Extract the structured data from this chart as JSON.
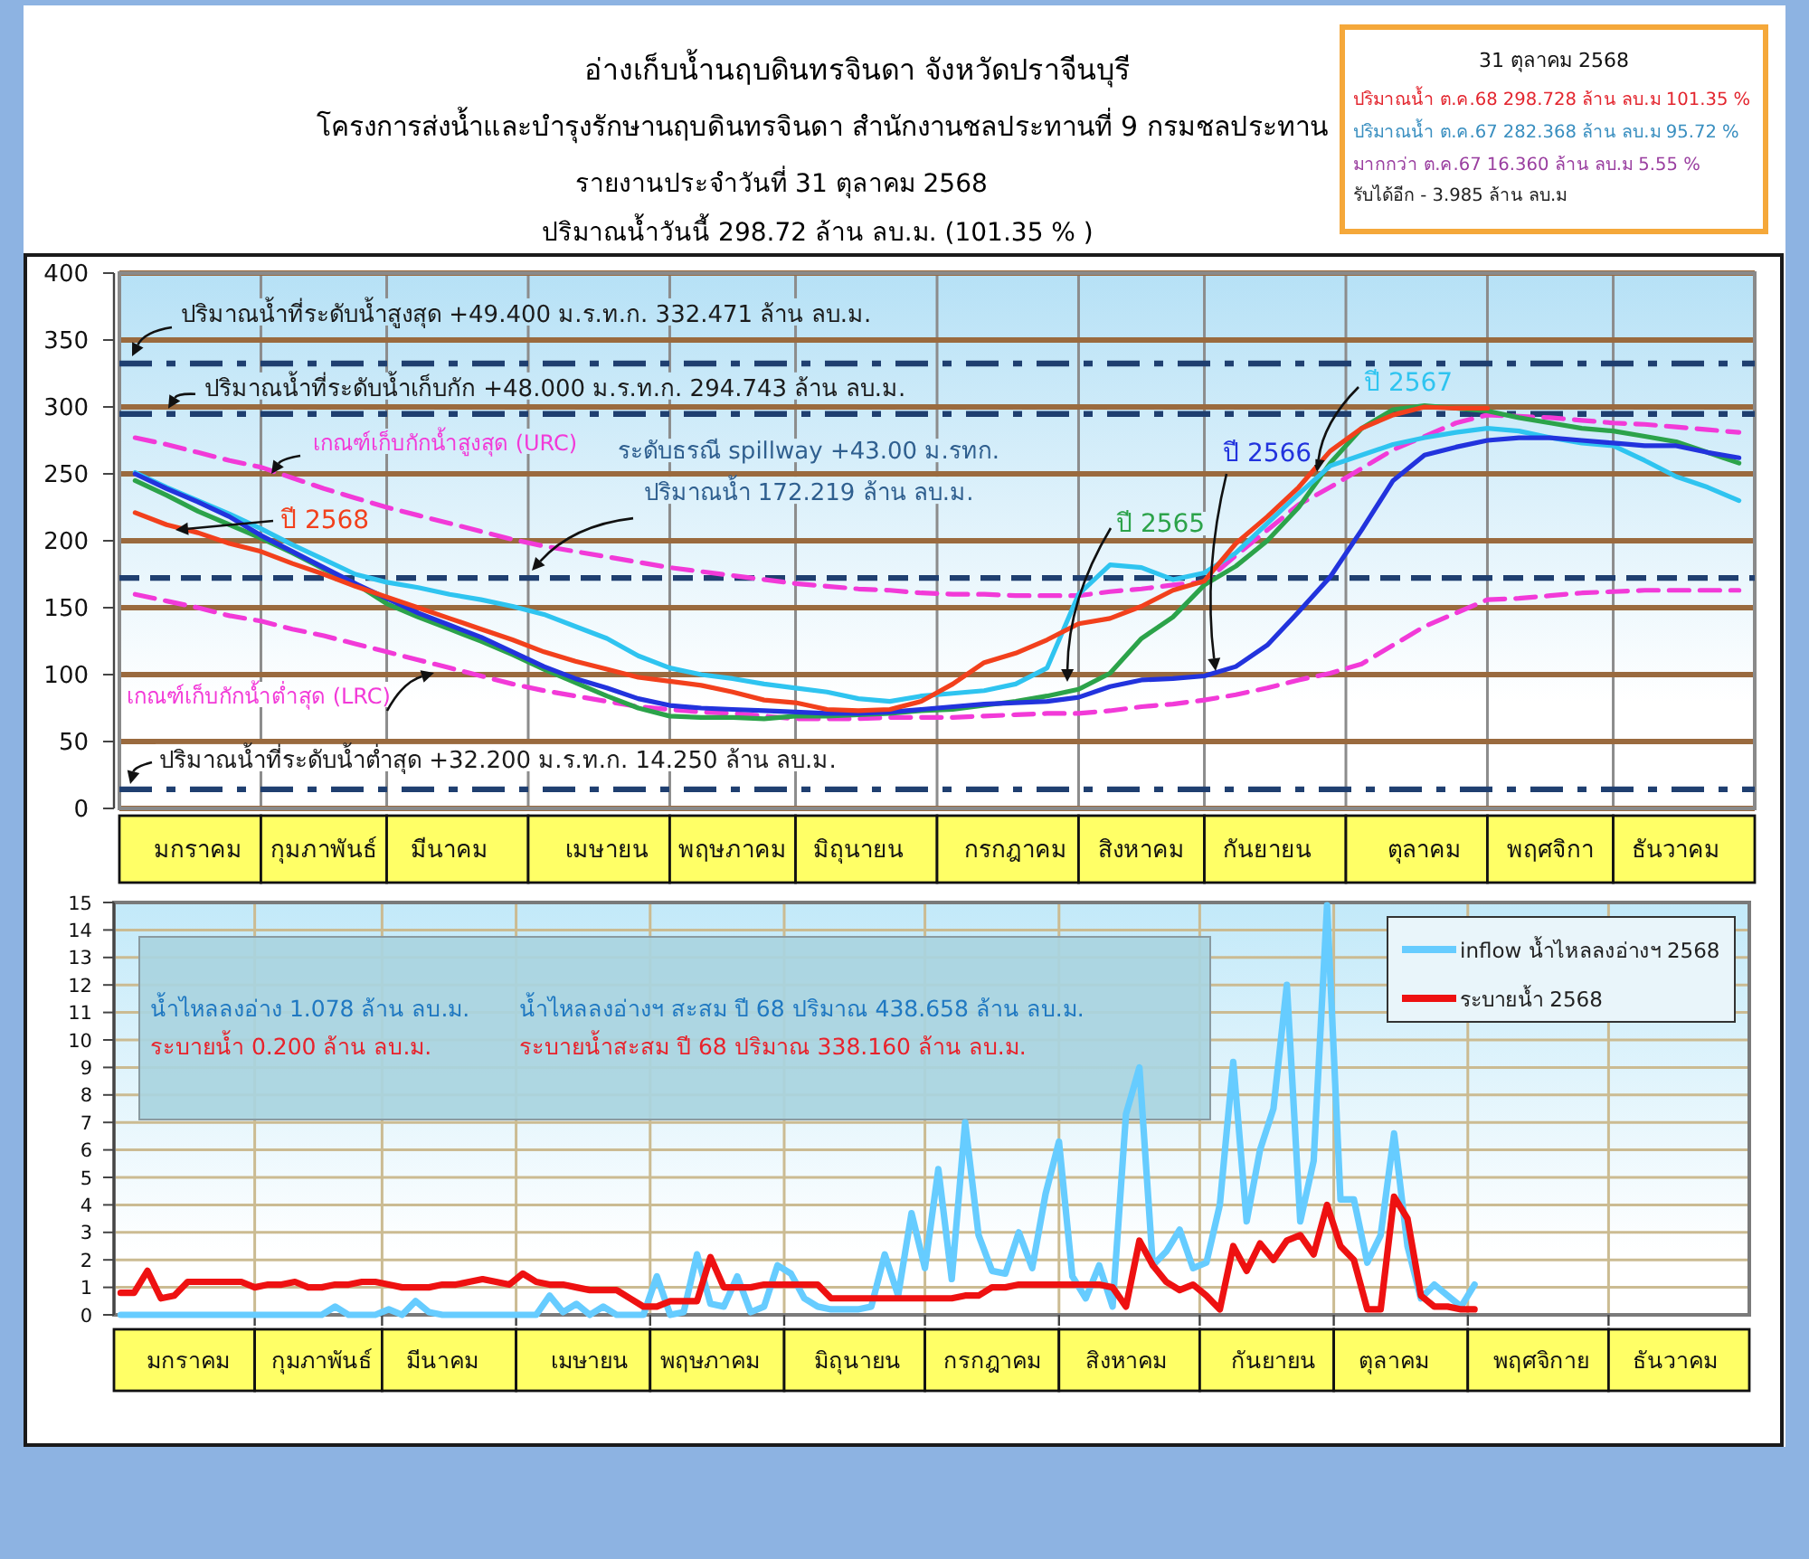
{
  "chart_data": [
    {
      "type": "line",
      "title": "อ่างเก็บน้ำนฤบดินทรจินดา จังหวัดปราจีนบุรี",
      "subtitle": "โครงการส่งน้ำและบำรุงรักษานฤบดินทรจินดา สำนักงานชลประทานที่ 9 กรมชลประทาน",
      "annotations": [
        "รายงานประจำวันที่ 31 ตุลาคม 2568",
        "ปริมาณน้ำวันนี้ 298.72 ล้าน ลบ.ม. (101.35 % )"
      ],
      "categories": [
        null,
        null,
        "มกราคม",
        null,
        null,
        null,
        "กุมภาพันธ์",
        null,
        null,
        null,
        "มีนาคม",
        null,
        null,
        null,
        null,
        "เมษายน",
        null,
        null,
        null,
        "พฤษภาคม",
        null,
        null,
        null,
        "มิถุนายน",
        null,
        null,
        null,
        null,
        "กรกฎาคม",
        null,
        null,
        null,
        "สิงหาคม",
        null,
        null,
        null,
        "กันยายน",
        null,
        null,
        null,
        null,
        "ตุลาคม",
        null,
        null,
        null,
        "พฤศจิกา",
        null,
        null,
        null,
        "ธันวาคม",
        null,
        null
      ],
      "ylim": [
        0,
        400
      ],
      "yticks": [
        0,
        50,
        100,
        150,
        200,
        250,
        300,
        350,
        400
      ],
      "grid": true,
      "series": [
        {
          "name": "เกณฑ์เก็บกักน้ำสูงสุด (URC)",
          "color": "#f23ad8",
          "line_style": "dashed",
          "values": [
            277,
            272,
            266,
            260,
            255,
            247,
            239,
            232,
            225,
            219,
            213,
            207,
            201,
            196,
            192,
            188,
            184,
            180,
            177,
            174,
            171,
            168,
            166,
            164,
            163,
            161,
            160,
            160,
            159,
            159,
            159,
            162,
            164,
            167,
            169,
            189,
            208,
            227,
            240,
            254,
            268,
            278,
            288,
            294,
            293,
            292,
            290,
            288,
            287,
            285,
            283,
            281
          ]
        },
        {
          "name": "เกณฑ์เก็บกักน้ำต่ำสุด (LRC)",
          "color": "#f23ad8",
          "line_style": "dashed",
          "values": [
            160,
            155,
            150,
            144,
            140,
            134,
            129,
            123,
            117,
            111,
            105,
            99,
            93,
            88,
            84,
            80,
            76,
            74,
            72,
            71,
            69,
            67,
            67,
            67,
            68,
            68,
            68,
            69,
            70,
            71,
            71,
            73,
            76,
            78,
            81,
            85,
            90,
            96,
            101,
            108,
            122,
            136,
            146,
            156,
            157,
            159,
            161,
            162,
            163,
            163,
            163,
            163
          ]
        },
        {
          "name": "ปี 2565",
          "color": "#2ca34a",
          "values": [
            245,
            234,
            222,
            212,
            202,
            191,
            179,
            168,
            153,
            143,
            134,
            125,
            115,
            104,
            94,
            84,
            75,
            69,
            68,
            68,
            67,
            69,
            69,
            70,
            71,
            73,
            74,
            77,
            80,
            84,
            89,
            101,
            127,
            143,
            167,
            181,
            200,
            225,
            258,
            284,
            298,
            301,
            299,
            297,
            292,
            288,
            284,
            282,
            278,
            274,
            266,
            258
          ]
        },
        {
          "name": "ปี 2567",
          "color": "#2fc4f0",
          "values": [
            251,
            240,
            230,
            220,
            209,
            197,
            186,
            175,
            169,
            165,
            160,
            156,
            151,
            145,
            136,
            127,
            114,
            105,
            100,
            97,
            93,
            90,
            87,
            82,
            80,
            84,
            86,
            88,
            93,
            105,
            160,
            182,
            180,
            171,
            176,
            191,
            213,
            235,
            256,
            264,
            272,
            277,
            281,
            284,
            282,
            277,
            273,
            271,
            260,
            248,
            240,
            230
          ]
        },
        {
          "name": "ปี 2566",
          "color": "#2233dd",
          "values": [
            250,
            239,
            229,
            218,
            204,
            192,
            180,
            168,
            157,
            146,
            137,
            128,
            117,
            106,
            97,
            90,
            82,
            77,
            75,
            74,
            73,
            72,
            71,
            71,
            72,
            74,
            76,
            78,
            79,
            80,
            83,
            91,
            96,
            97,
            99,
            106,
            122,
            147,
            173,
            208,
            245,
            264,
            270,
            275,
            277,
            277,
            275,
            273,
            271,
            271,
            266,
            262
          ]
        },
        {
          "name": "ปี 2568",
          "color": "#f2401c",
          "values": [
            221,
            212,
            206,
            198,
            192,
            183,
            175,
            166,
            158,
            150,
            142,
            134,
            126,
            117,
            110,
            104,
            98,
            95,
            92,
            87,
            81,
            79,
            74,
            73,
            74,
            80,
            93,
            109,
            116,
            126,
            138,
            142,
            151,
            163,
            170,
            198,
            218,
            240,
            267,
            284,
            294,
            300,
            299,
            299,
            null,
            null,
            null,
            null,
            null,
            null,
            null,
            null
          ]
        }
      ],
      "ref_lines": [
        {
          "axis": "y",
          "value": 332.471,
          "label": "ปริมาณน้ำที่ระดับน้ำสูงสุด +49.400 ม.ร.ท.ก. 332.471 ล้าน ลบ.ม.",
          "color": "#1f3f70",
          "line_style": "dashdot"
        },
        {
          "axis": "y",
          "value": 294.743,
          "label": "ปริมาณน้ำที่ระดับน้ำเก็บกัก +48.000 ม.ร.ท.ก. 294.743 ล้าน ลบ.ม.",
          "color": "#1f3f70",
          "line_style": "dashdot"
        },
        {
          "axis": "y",
          "value": 172.219,
          "label": "ระดับธรณี spillway +43.00 ม.รทก.\nปริมาณน้ำ 172.219 ล้าน ลบ.ม.",
          "color": "#1f3f70",
          "line_style": "dashed"
        },
        {
          "axis": "y",
          "value": 14.25,
          "label": "ปริมาณน้ำที่ระดับน้ำต่ำสุด +32.200 ม.ร.ท.ก. 14.250 ล้าน ลบ.ม.",
          "color": "#1f3f70",
          "line_style": "dashdot"
        }
      ]
    },
    {
      "type": "other",
      "title": "31 ตุลาคม 2568",
      "annotations": [
        "ปริมาณน้ำ ต.ค.68 298.728 ล้าน ลบ.ม 101.35 %",
        "ปริมาณน้ำ ต.ค.67 282.368 ล้าน ลบ.ม 95.72 %",
        "มากกว่า ต.ค.67 16.360 ล้าน ลบ.ม 5.55 %",
        "รับได้อีก - 3.985 ล้าน ลบ.ม"
      ]
    },
    {
      "type": "line",
      "categories": [
        null,
        null,
        null,
        null,
        null,
        "มกราคม",
        null,
        null,
        null,
        null,
        null,
        null,
        null,
        null,
        null,
        "กุมภาพันธ์",
        null,
        null,
        null,
        null,
        null,
        null,
        null,
        null,
        "มีนาคม",
        null,
        null,
        null,
        null,
        null,
        null,
        null,
        null,
        null,
        null,
        "เมษายน",
        null,
        null,
        null,
        null,
        null,
        null,
        null,
        null,
        "พฤษภาคม",
        null,
        null,
        null,
        null,
        null,
        null,
        null,
        null,
        null,
        null,
        "มิถุนายน",
        null,
        null,
        null,
        null,
        null,
        null,
        null,
        null,
        null,
        "กรกฎาคม",
        null,
        null,
        null,
        null,
        null,
        null,
        null,
        null,
        null,
        "สิงหาคม",
        null,
        null,
        null,
        null,
        null,
        null,
        null,
        null,
        null,
        null,
        "กันยายน",
        null,
        null,
        null,
        null,
        null,
        null,
        null,
        null,
        "ตุลาคม",
        null,
        null,
        null,
        null,
        null,
        null,
        null,
        null,
        null,
        null,
        "พฤศจิกาย",
        null,
        null,
        null,
        null,
        null,
        null,
        null,
        null,
        null,
        "ธันวาคม",
        null,
        null,
        null,
        null,
        null
      ],
      "ylim": [
        0,
        15
      ],
      "yticks": [
        0,
        1,
        2,
        3,
        4,
        5,
        6,
        7,
        8,
        9,
        10,
        11,
        12,
        13,
        14,
        15
      ],
      "grid": true,
      "legend": "top right",
      "annotations": [
        "น้ำไหลลงอ่าง 1.078 ล้าน ลบ.ม.",
        "น้ำไหลลงอ่างฯ สะสม ปี 68 ปริมาณ 438.658 ล้าน ลบ.ม.",
        "ระบายน้ำ 0.200 ล้าน ลบ.ม.",
        "ระบายน้ำสะสม ปี 68 ปริมาณ 338.160 ล้าน ลบ.ม."
      ],
      "series": [
        {
          "name": "inflow น้ำไหลลงอ่างฯ 2568",
          "color": "#66ccff",
          "values": [
            0,
            0,
            0,
            0,
            0,
            0,
            0,
            0,
            0,
            0,
            0,
            0,
            0,
            0,
            0,
            0,
            0.3,
            0,
            0,
            0,
            0.2,
            0,
            0.5,
            0.1,
            0,
            0,
            0,
            0,
            0,
            0,
            0,
            0,
            0.7,
            0.1,
            0.4,
            0,
            0.3,
            0,
            0,
            0,
            1.4,
            0,
            0.1,
            2.2,
            0.4,
            0.3,
            1.4,
            0.1,
            0.3,
            1.8,
            1.5,
            0.6,
            0.3,
            0.2,
            0.2,
            0.2,
            0.3,
            2.2,
            0.7,
            3.7,
            1.7,
            5.3,
            1.3,
            7.0,
            2.9,
            1.6,
            1.5,
            3.0,
            1.7,
            4.4,
            6.3,
            1.4,
            0.6,
            1.8,
            0.3,
            7.3,
            9.0,
            1.8,
            2.3,
            3.1,
            1.7,
            1.9,
            4.0,
            9.2,
            3.4,
            6.0,
            7.5,
            12.0,
            3.4,
            5.6,
            14.9,
            4.2,
            4.2,
            1.9,
            2.9,
            6.6,
            2.5,
            0.6,
            1.1,
            0.7,
            0.3,
            1.1,
            null,
            null,
            null,
            null,
            null,
            null,
            null,
            null,
            null,
            null,
            null,
            null,
            null,
            null,
            null,
            null,
            null,
            null,
            null,
            null
          ]
        },
        {
          "name": "ระบายน้ำ 2568",
          "color": "#ee1111",
          "values": [
            0.8,
            0.8,
            1.6,
            0.6,
            0.7,
            1.2,
            1.2,
            1.2,
            1.2,
            1.2,
            1.0,
            1.1,
            1.1,
            1.2,
            1.0,
            1.0,
            1.1,
            1.1,
            1.2,
            1.2,
            1.1,
            1.0,
            1.0,
            1.0,
            1.1,
            1.1,
            1.2,
            1.3,
            1.2,
            1.1,
            1.5,
            1.2,
            1.1,
            1.1,
            1.0,
            0.9,
            0.9,
            0.9,
            0.6,
            0.3,
            0.3,
            0.5,
            0.5,
            0.5,
            2.1,
            1.0,
            1.0,
            1.0,
            1.1,
            1.1,
            1.1,
            1.1,
            1.1,
            0.6,
            0.6,
            0.6,
            0.6,
            0.6,
            0.6,
            0.6,
            0.6,
            0.6,
            0.6,
            0.7,
            0.7,
            1.0,
            1.0,
            1.1,
            1.1,
            1.1,
            1.1,
            1.1,
            1.1,
            1.1,
            1.0,
            0.3,
            2.7,
            1.8,
            1.2,
            0.9,
            1.1,
            0.7,
            0.2,
            2.5,
            1.6,
            2.6,
            2.0,
            2.7,
            2.9,
            2.2,
            4.0,
            2.5,
            2.0,
            0.2,
            0.2,
            4.3,
            3.5,
            0.7,
            0.3,
            0.3,
            0.2,
            0.2,
            null,
            null,
            null,
            null,
            null,
            null,
            null,
            null,
            null,
            null,
            null,
            null,
            null,
            null,
            null,
            null,
            null,
            null,
            null,
            null
          ]
        }
      ]
    }
  ]
}
